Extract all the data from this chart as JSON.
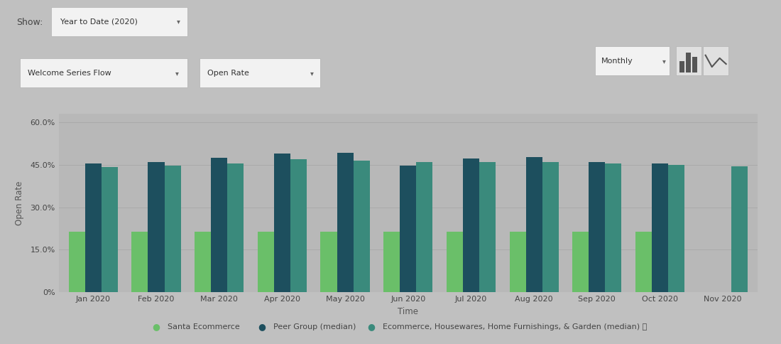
{
  "months": [
    "Jan 2020",
    "Feb 2020",
    "Mar 2020",
    "Apr 2020",
    "May 2020",
    "Jun 2020",
    "Jul 2020",
    "Aug 2020",
    "Sep 2020",
    "Oct 2020",
    "Nov 2020"
  ],
  "santa_ecommerce": [
    0.215,
    0.215,
    0.215,
    0.215,
    0.215,
    0.215,
    0.215,
    0.215,
    0.215,
    0.215,
    null
  ],
  "peer_group": [
    0.455,
    0.458,
    0.475,
    0.488,
    0.492,
    0.447,
    0.472,
    0.476,
    0.458,
    0.453,
    null
  ],
  "ecommerce_hh": [
    0.441,
    0.447,
    0.455,
    0.468,
    0.465,
    0.459,
    0.46,
    0.458,
    0.454,
    0.449,
    0.443
  ],
  "color_santa": "#6abf69",
  "color_peer": "#1d4f5e",
  "color_ecommerce": "#3a8a7c",
  "bg_color": "#c0c0c0",
  "plot_bg": "#b8b8b8",
  "grid_color": "#a8a8a8",
  "title_show": "Show:",
  "dropdown1": "Year to Date (2020)",
  "dropdown2": "Welcome Series Flow",
  "dropdown3": "Open Rate",
  "dropdown4": "Monthly",
  "ylabel": "Open Rate",
  "xlabel": "Time",
  "legend1": "Santa Ecommerce",
  "legend2": "Peer Group (median)",
  "legend3": "Ecommerce, Housewares, Home Furnishings, & Garden (median)",
  "ytick_labels": [
    "0%",
    "15.0%",
    "30.0%",
    "45.0%",
    "60.0%"
  ],
  "yticks": [
    0.0,
    0.15,
    0.3,
    0.45,
    0.6
  ]
}
